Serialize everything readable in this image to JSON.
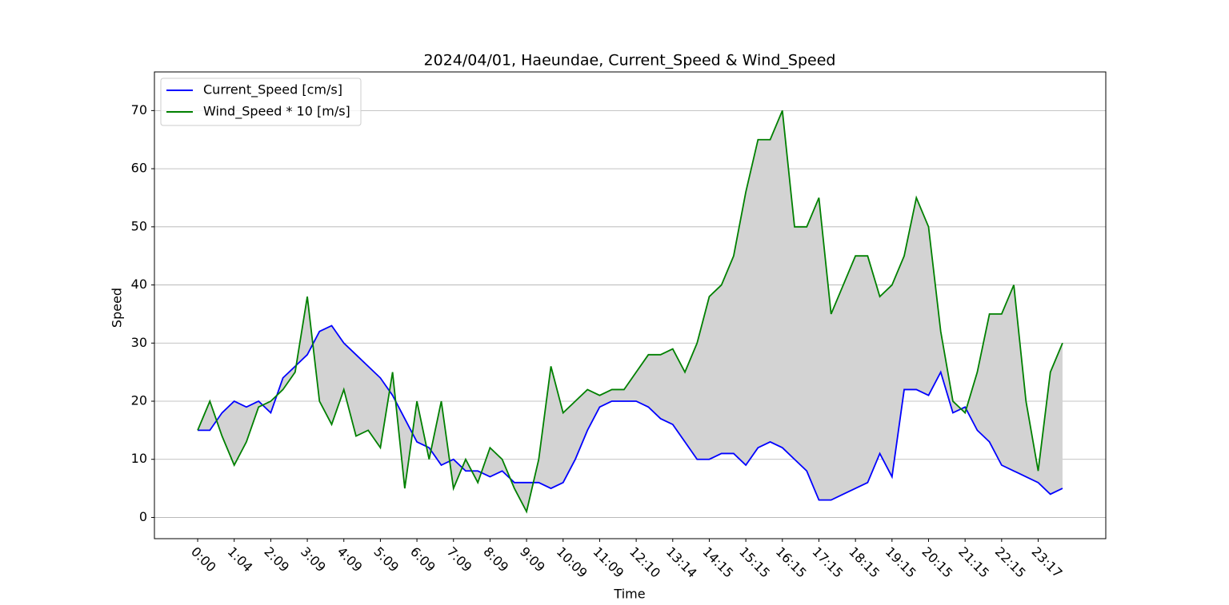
{
  "chart_data": {
    "type": "line",
    "title": "2024/04/01, Haeundae, Current_Speed & Wind_Speed",
    "xlabel": "Time",
    "ylabel": "Speed",
    "x": [
      0,
      20,
      40,
      60,
      80,
      100,
      120,
      140,
      160,
      180,
      200,
      220,
      240,
      260,
      280,
      300,
      320,
      340,
      360,
      380,
      400,
      420,
      440,
      460,
      480,
      500,
      520,
      540,
      560,
      580,
      600,
      620,
      640,
      660,
      680,
      700,
      720,
      740,
      760,
      780,
      800,
      820,
      840,
      860,
      880,
      900,
      920,
      940,
      960,
      980,
      1000,
      1020,
      1040,
      1060,
      1080,
      1100,
      1120,
      1140,
      1160,
      1180,
      1200,
      1220,
      1240,
      1260,
      1280,
      1300,
      1320,
      1340,
      1360,
      1380,
      1400,
      1420
    ],
    "series": [
      {
        "name": "Current_Speed [cm/s]",
        "color": "#0000ff",
        "values": [
          15,
          15,
          18,
          20,
          19,
          20,
          18,
          24,
          26,
          28,
          32,
          33,
          30,
          28,
          26,
          24,
          21,
          17,
          13,
          12,
          9,
          10,
          8,
          8,
          7,
          8,
          6,
          6,
          6,
          5,
          6,
          10,
          15,
          19,
          20,
          20,
          20,
          19,
          17,
          16,
          13,
          10,
          10,
          11,
          11,
          9,
          12,
          13,
          12,
          10,
          8,
          3,
          3,
          4,
          5,
          6,
          11,
          7,
          22,
          22,
          21,
          25,
          18,
          19,
          15,
          13,
          9,
          8,
          7,
          6,
          4,
          5
        ]
      },
      {
        "name": "Wind_Speed * 10 [m/s]",
        "color": "#008000",
        "values": [
          15,
          20,
          14,
          9,
          13,
          19,
          20,
          22,
          25,
          38,
          20,
          16,
          22,
          14,
          15,
          12,
          25,
          5,
          20,
          10,
          20,
          5,
          10,
          6,
          12,
          10,
          5,
          1,
          10,
          26,
          18,
          20,
          22,
          21,
          22,
          22,
          25,
          28,
          28,
          29,
          25,
          30,
          38,
          40,
          45,
          56,
          65,
          65,
          70,
          50,
          50,
          55,
          35,
          40,
          45,
          45,
          38,
          40,
          45,
          55,
          50,
          32,
          20,
          18,
          25,
          35,
          35,
          40,
          20,
          8,
          25,
          30
        ]
      }
    ],
    "fill_between": true,
    "fill_color": "#d3d3d3",
    "xlim": [
      -71,
      1491
    ],
    "xticks": [
      {
        "value": 0,
        "label": "0:00"
      },
      {
        "value": 60,
        "label": "1:04"
      },
      {
        "value": 120,
        "label": "2:09"
      },
      {
        "value": 180,
        "label": "3:09"
      },
      {
        "value": 240,
        "label": "4:09"
      },
      {
        "value": 300,
        "label": "5:09"
      },
      {
        "value": 360,
        "label": "6:09"
      },
      {
        "value": 420,
        "label": "7:09"
      },
      {
        "value": 480,
        "label": "8:09"
      },
      {
        "value": 540,
        "label": "9:09"
      },
      {
        "value": 600,
        "label": "10:09"
      },
      {
        "value": 660,
        "label": "11:09"
      },
      {
        "value": 720,
        "label": "12:10"
      },
      {
        "value": 780,
        "label": "13:14"
      },
      {
        "value": 840,
        "label": "14:15"
      },
      {
        "value": 900,
        "label": "15:15"
      },
      {
        "value": 960,
        "label": "16:15"
      },
      {
        "value": 1020,
        "label": "17:15"
      },
      {
        "value": 1080,
        "label": "18:15"
      },
      {
        "value": 1140,
        "label": "19:15"
      },
      {
        "value": 1200,
        "label": "20:15"
      },
      {
        "value": 1260,
        "label": "21:15"
      },
      {
        "value": 1320,
        "label": "22:15"
      },
      {
        "value": 1380,
        "label": "23:17"
      }
    ],
    "ylim": [
      -3.65,
      76.65
    ],
    "yticks": [
      0,
      10,
      20,
      30,
      40,
      50,
      60,
      70
    ],
    "grid": "y",
    "legend": "upper left"
  }
}
